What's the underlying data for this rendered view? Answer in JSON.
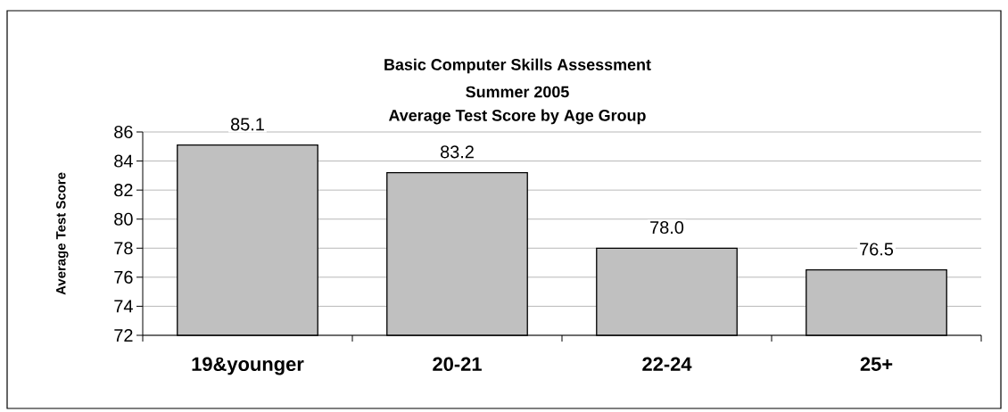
{
  "chart_data": {
    "type": "bar",
    "title": "Basic Computer Skills Assessment",
    "subtitle": "Summer 2005",
    "annotations": [
      "Average Test Score by Age Group"
    ],
    "ylabel": "Average Test Score",
    "categories": [
      "19&younger",
      "20-21",
      "22-24",
      "25+"
    ],
    "values": [
      85.1,
      83.2,
      78.0,
      76.5
    ],
    "value_labels": [
      "85.1",
      "83.2",
      "78.0",
      "76.5"
    ],
    "color": "#c0c0c0",
    "ylim": [
      72,
      86
    ],
    "yticks": [
      72,
      74,
      76,
      78,
      80,
      82,
      84,
      86
    ],
    "grid": "y"
  }
}
